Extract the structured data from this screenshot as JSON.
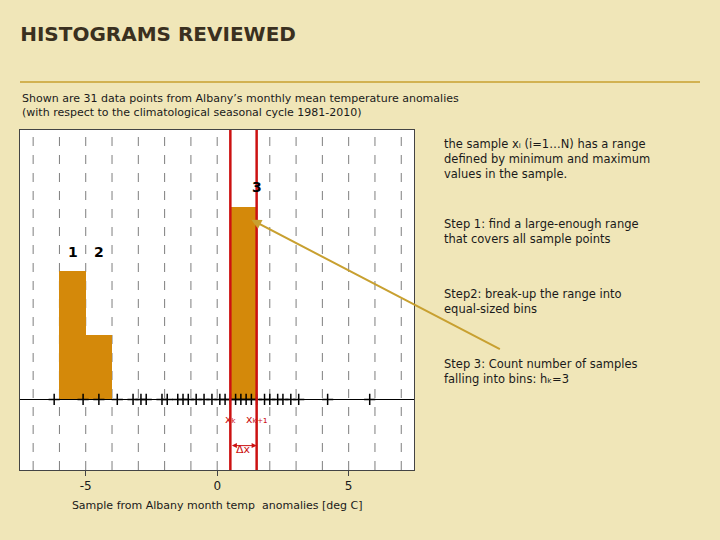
{
  "chart_data": {
    "type": "bar",
    "title": "HISTOGRAMS REVIEWED",
    "subtitle": [
      "Shown are 31 data points from Albany’s monthly mean temperature anomalies",
      "(with respect to the climatological seasonal cycle 1981-2010)"
    ],
    "xlabel": "Sample from Albany month temp  anomalies [deg C]",
    "xlim": [
      -7.5,
      7.5
    ],
    "xticks": [
      -5,
      0,
      5
    ],
    "ylim": [
      -1.1,
      4.2
    ],
    "tick_labels": "x",
    "grid": false,
    "series": [
      {
        "type": "bar",
        "x": [
          -5.5,
          -4.5,
          1.0
        ],
        "values": [
          2,
          1,
          3
        ],
        "color": "#d4890a"
      },
      {
        "type": "scatter",
        "marker": "plus",
        "color": "#000000",
        "x": [
          -6.2,
          -5.1,
          -4.5,
          -3.8,
          -3.2,
          -2.9,
          -2.7,
          -2.1,
          -1.9,
          -1.5,
          -1.3,
          -1.1,
          -0.8,
          -0.5,
          -0.2,
          0.1,
          0.3,
          0.5,
          0.7,
          0.9,
          1.1,
          1.3,
          1.5,
          1.8,
          2.0,
          2.3,
          2.5,
          2.8,
          3.1,
          4.2,
          5.8
        ],
        "values": [
          0,
          0,
          0,
          0,
          0,
          0,
          0,
          0,
          0,
          0,
          0,
          0,
          0,
          0,
          0,
          0,
          0,
          0,
          0,
          0,
          0,
          0,
          0,
          0,
          0,
          0,
          0,
          0,
          0,
          0,
          0
        ]
      }
    ],
    "vlines": [
      {
        "x": [
          -7,
          -6,
          -5,
          -4,
          -3,
          -2,
          -1,
          0,
          2,
          3,
          4,
          5,
          6,
          7
        ],
        "line_style": "dashed",
        "color": "#000000"
      },
      {
        "x": [
          0.5,
          1.5
        ],
        "line_style": "solid",
        "color": "#cc1111"
      }
    ],
    "annotations": [
      {
        "text": "1",
        "x": -5.5,
        "y": 2.15,
        "color": "#000000"
      },
      {
        "text": "2",
        "x": -4.5,
        "y": 2.15,
        "color": "#000000"
      },
      {
        "text": "3",
        "x": 1.5,
        "y": 3.15,
        "color": "#000000"
      },
      {
        "text": "xₖ",
        "x": 0.5,
        "y": -0.45,
        "color": "#cc1111"
      },
      {
        "text": "xₖ₊₁",
        "x": 1.5,
        "y": -0.45,
        "color": "#cc1111"
      },
      {
        "text": "Δx",
        "x": 1.0,
        "y": -0.92,
        "color": "#cc1111"
      }
    ],
    "span_arrow": {
      "x": [
        0.5,
        1.5
      ],
      "y": -0.72,
      "color": "#cc1111"
    },
    "notes": [
      "the sample xᵢ (i=1…N) has a range\ndefined by minimum and maximum\nvalues in the sample.",
      "Step 1: find a large-enough range\nthat covers all sample points",
      "Step2: break-up the range into\nequal-sized bins",
      "Step 3: Count number of samples\nfalling into bins: hₖ=3"
    ],
    "pointer": {
      "x": 1.3,
      "y": 2.8,
      "color": "#c8a030"
    },
    "background": "#f0e6b8",
    "plot_background": "#ffffff",
    "title_color": "#3a3020",
    "text_color": "#1a1a1a",
    "underline_color": "#c8a030"
  }
}
